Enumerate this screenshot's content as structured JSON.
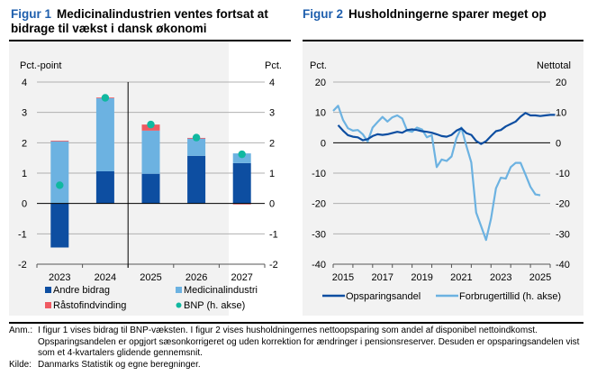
{
  "figures": {
    "fig1": {
      "number": "Figur 1",
      "title": "Medicinalindustrien ventes fortsat at bidrage til vækst i dansk økonomi"
    },
    "fig2": {
      "number": "Figur 2",
      "title": "Husholdningerne sparer meget op"
    }
  },
  "notes": {
    "anm_label": "Anm.:",
    "anm_text": "I figur 1 vises bidrag til BNP-væksten. I figur 2 vises husholdningernes nettoopsparing som andel af disponibel nettoindkomst. Opsparingsandelen er opgjort sæsonkorrigeret og uden korrektion for ændringer i pensionsreserver. Desuden er opsparingsandelen vist som et 4-kvartalers glidende gennemsnit.",
    "kilde_label": "Kilde:",
    "kilde_text": "Danmarks Statistik og egne beregninger."
  },
  "colors": {
    "andre": "#0d4ea1",
    "medicinal": "#6cb2e1",
    "raastof": "#ef5a62",
    "bnp": "#10b8a0",
    "opsparing": "#0d4ea1",
    "forbruger": "#6cb2e1"
  },
  "chart_data": [
    {
      "type": "bar",
      "stacked": true,
      "title": "Medicinalindustrien ventes fortsat at bidrage til vækst i dansk økonomi",
      "ylabel_left": "Pct.-point",
      "ylabel_right": "Pct.",
      "ylim": [
        -2,
        4
      ],
      "yticks": [
        -2,
        -1,
        0,
        1,
        2,
        3,
        4
      ],
      "categories": [
        "2023",
        "2024",
        "2025",
        "2026",
        "2027"
      ],
      "forecast_divider_after": "2024",
      "series": [
        {
          "name": "Andre bidrag",
          "key": "andre",
          "values": [
            -1.45,
            1.06,
            0.98,
            1.57,
            1.33
          ]
        },
        {
          "name": "Medicinalindustri",
          "key": "medicinal",
          "values": [
            2.05,
            2.41,
            1.42,
            0.58,
            0.32
          ]
        },
        {
          "name": "Råstofindvinding",
          "key": "raastof",
          "values": [
            0.02,
            0.02,
            0.2,
            0.01,
            -0.03
          ]
        }
      ],
      "points": {
        "name": "BNP (h. akse)",
        "key": "bnp",
        "values": [
          0.6,
          3.48,
          2.6,
          2.17,
          1.62
        ]
      },
      "legend": [
        "Andre bidrag",
        "Medicinalindustri",
        "Råstofindvinding",
        "BNP (h. akse)"
      ],
      "legend_position": "bottom",
      "grid": true
    },
    {
      "type": "line",
      "title": "Husholdningerne sparer meget op",
      "ylabel_left": "Pct.",
      "ylabel_right": "Nettotal",
      "ylim": [
        -40,
        20
      ],
      "yticks": [
        -40,
        -30,
        -20,
        -10,
        0,
        10,
        20
      ],
      "xlim": [
        2015,
        2026
      ],
      "xtick_labels": [
        "2015",
        "2017",
        "2019",
        "2021",
        "2023",
        "2025"
      ],
      "series": [
        {
          "name": "Opsparingsandel",
          "key": "opsparing",
          "start": 2015.25,
          "step": 0.25,
          "values": [
            5.8,
            4.0,
            2.5,
            2.0,
            1.8,
            0.8,
            1.2,
            2.2,
            2.8,
            2.6,
            2.8,
            3.2,
            3.6,
            3.3,
            4.2,
            4.4,
            4.2,
            3.8,
            3.6,
            3.3,
            2.8,
            2.2,
            2.0,
            2.6,
            4.0,
            4.8,
            3.2,
            2.6,
            0.6,
            -0.4,
            0.5,
            2.2,
            3.8,
            4.2,
            5.4,
            6.2,
            7.0,
            8.6,
            9.8,
            9.0,
            9.0,
            8.8,
            9.0,
            9.2,
            9.2
          ]
        },
        {
          "name": "Forbrugertillid (h. akse)",
          "key": "forbruger",
          "start": 2015.0,
          "step": 0.25,
          "values": [
            10.5,
            12.2,
            7.5,
            4.8,
            4.0,
            4.2,
            2.8,
            0.4,
            5.0,
            6.8,
            8.5,
            7.0,
            8.4,
            9.0,
            8.0,
            4.0,
            3.6,
            5.0,
            4.4,
            1.8,
            2.5,
            -8.0,
            -5.5,
            -6.0,
            -4.5,
            1.5,
            5.0,
            -1.0,
            -6.5,
            -23.0,
            -27.5,
            -32.0,
            -25.0,
            -15.0,
            -11.5,
            -11.8,
            -8.0,
            -6.6,
            -6.6,
            -10.5,
            -14.5,
            -17.0,
            -17.3
          ]
        }
      ],
      "legend": [
        "Opsparingsandel",
        "Forbrugertillid (h. akse)"
      ],
      "legend_position": "bottom",
      "grid": true
    }
  ]
}
